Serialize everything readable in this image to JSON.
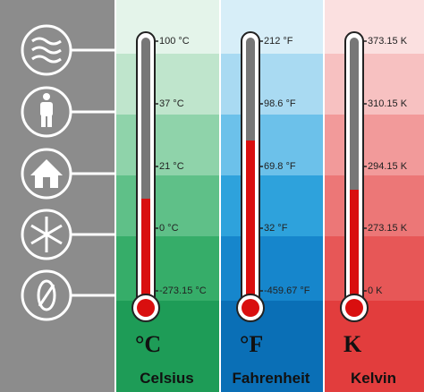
{
  "columns": [
    {
      "symbol": "°C",
      "name": "Celsius",
      "labels": [
        "100 °C",
        "37 °C",
        "21 °C",
        "0 °C",
        "-273.15 °C"
      ]
    },
    {
      "symbol": "°F",
      "name": "Fahrenheit",
      "labels": [
        "212 °F",
        "98.6 °F",
        "69.8 °F",
        "32 °F",
        "-459.67 °F"
      ]
    },
    {
      "symbol": "K",
      "name": "Kelvin",
      "labels": [
        "373.15 K",
        "310.15 K",
        "294.15 K",
        "273.15 K",
        "0 K"
      ]
    }
  ]
}
